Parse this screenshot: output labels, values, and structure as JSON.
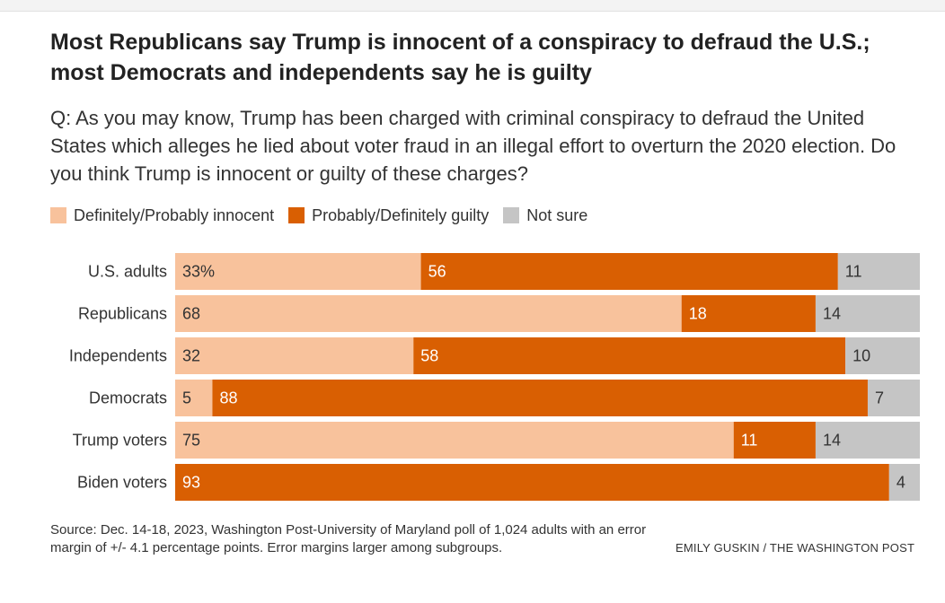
{
  "title": "Most Republicans say Trump is innocent of a conspiracy to defraud the U.S.; most Democrats and independents say he is guilty",
  "subtitle": "Q: As you may know, Trump has been charged with criminal conspiracy to defraud the United States which alleges he lied about voter fraud in an illegal effort to overturn the 2020 election. Do you think Trump is innocent or guilty of these charges?",
  "legend": [
    {
      "label": "Definitely/Probably innocent",
      "color": "#f8c29c"
    },
    {
      "label": "Probably/Definitely guilty",
      "color": "#d95f02"
    },
    {
      "label": "Not sure",
      "color": "#c5c5c5"
    }
  ],
  "footer": {
    "source": "Source: Dec. 14-18, 2023, Washington Post-University of Maryland poll of 1,024 adults with an error margin of +/- 4.1 percentage points. Error margins larger among subgroups.",
    "credit": "EMILY GUSKIN / THE WASHINGTON POST"
  },
  "chart_data": {
    "type": "bar",
    "stacked": true,
    "orientation": "horizontal",
    "categories": [
      "U.S. adults",
      "Republicans",
      "Independents",
      "Democrats",
      "Trump voters",
      "Biden voters"
    ],
    "series": [
      {
        "name": "Definitely/Probably innocent",
        "values": [
          33,
          68,
          32,
          5,
          75,
          null
        ],
        "labels": [
          "33%",
          "68",
          "32",
          "5",
          "75",
          ""
        ],
        "color": "#f8c29c"
      },
      {
        "name": "Probably/Definitely guilty",
        "values": [
          56,
          18,
          58,
          88,
          11,
          93
        ],
        "labels": [
          "56",
          "18",
          "58",
          "88",
          "11",
          "93"
        ],
        "color": "#d95f02"
      },
      {
        "name": "Not sure",
        "values": [
          11,
          14,
          10,
          7,
          14,
          4
        ],
        "labels": [
          "11",
          "14",
          "10",
          "7",
          "14",
          "4"
        ],
        "color": "#c5c5c5"
      }
    ],
    "label_colors": [
      "#333333",
      "#ffffff",
      "#333333"
    ]
  }
}
